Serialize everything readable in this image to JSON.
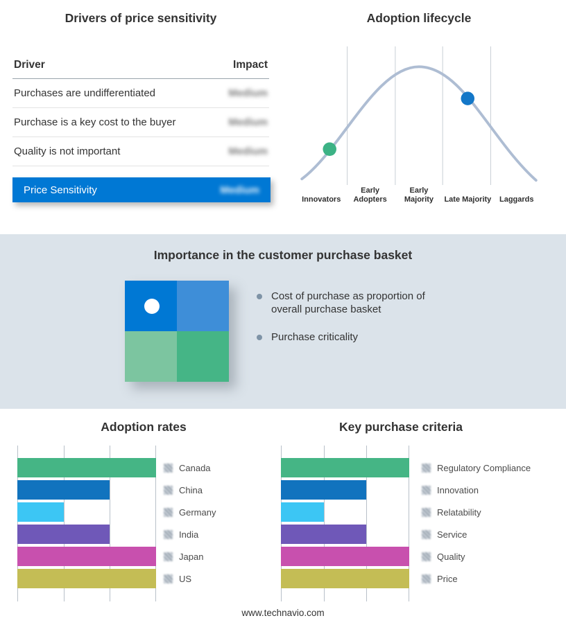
{
  "colors": {
    "accent": "#0078d4",
    "band_bg": "#dbe3ea",
    "curve": "#aebdd3",
    "bullet": "#7e93a6"
  },
  "icons": {
    "legend_value": "redacted-blur-square",
    "bullet": "bullet-dot"
  },
  "drivers": {
    "title": "Drivers of price sensitivity",
    "col_driver": "Driver",
    "col_impact": "Impact",
    "rows": [
      {
        "driver": "Purchases are undifferentiated",
        "impact": "Medium"
      },
      {
        "driver": "Purchase is a key cost to the buyer",
        "impact": "Medium"
      },
      {
        "driver": "Quality is not important",
        "impact": "Medium"
      }
    ],
    "highlight": {
      "driver": "Price Sensitivity",
      "impact": "Medium"
    },
    "highlight_color": "#0078d4"
  },
  "lifecycle": {
    "title": "Adoption lifecycle",
    "stages": [
      "Innovators",
      "Early Adopters",
      "Early Majority",
      "Late Majority",
      "Laggards"
    ],
    "markers": [
      {
        "stage": "Innovators",
        "color": "#3cb285",
        "x": 44,
        "y": 152
      },
      {
        "stage": "Late Majority",
        "color": "#1377c8",
        "x": 248,
        "y": 77
      }
    ]
  },
  "basket": {
    "title": "Importance in the customer purchase basket",
    "bullets": [
      "Cost of purchase as proportion of overall purchase basket",
      "Purchase criticality"
    ],
    "matrix": {
      "top_left": "#0078d4",
      "top_right": "#3e8ed8",
      "bottom_left": "#7cc5a0",
      "bottom_right": "#45b586"
    }
  },
  "chart_data": [
    {
      "type": "bar",
      "orientation": "horizontal",
      "title": "Adoption rates",
      "categories": [
        "Canada",
        "China",
        "Germany",
        "India",
        "Japan",
        "US"
      ],
      "values": [
        1,
        0.667,
        0.333,
        0.667,
        1,
        1
      ],
      "colors": [
        "#45b585",
        "#1173be",
        "#3cc6f4",
        "#6f58b8",
        "#c850ae",
        "#c4bd55"
      ],
      "xlim": [
        0,
        1
      ],
      "gridlines": 4,
      "value_labels": "redacted",
      "legend_position": "right"
    },
    {
      "type": "bar",
      "orientation": "horizontal",
      "title": "Key purchase criteria",
      "categories": [
        "Regulatory Compliance",
        "Innovation",
        "Relatability",
        "Service",
        "Quality",
        "Price"
      ],
      "values": [
        1,
        0.667,
        0.333,
        0.667,
        1,
        1
      ],
      "colors": [
        "#45b585",
        "#1173be",
        "#3cc6f4",
        "#6f58b8",
        "#c850ae",
        "#c4bd55"
      ],
      "xlim": [
        0,
        1
      ],
      "gridlines": 4,
      "value_labels": "redacted",
      "legend_position": "right"
    }
  ],
  "footer": {
    "url": "www.technavio.com"
  }
}
